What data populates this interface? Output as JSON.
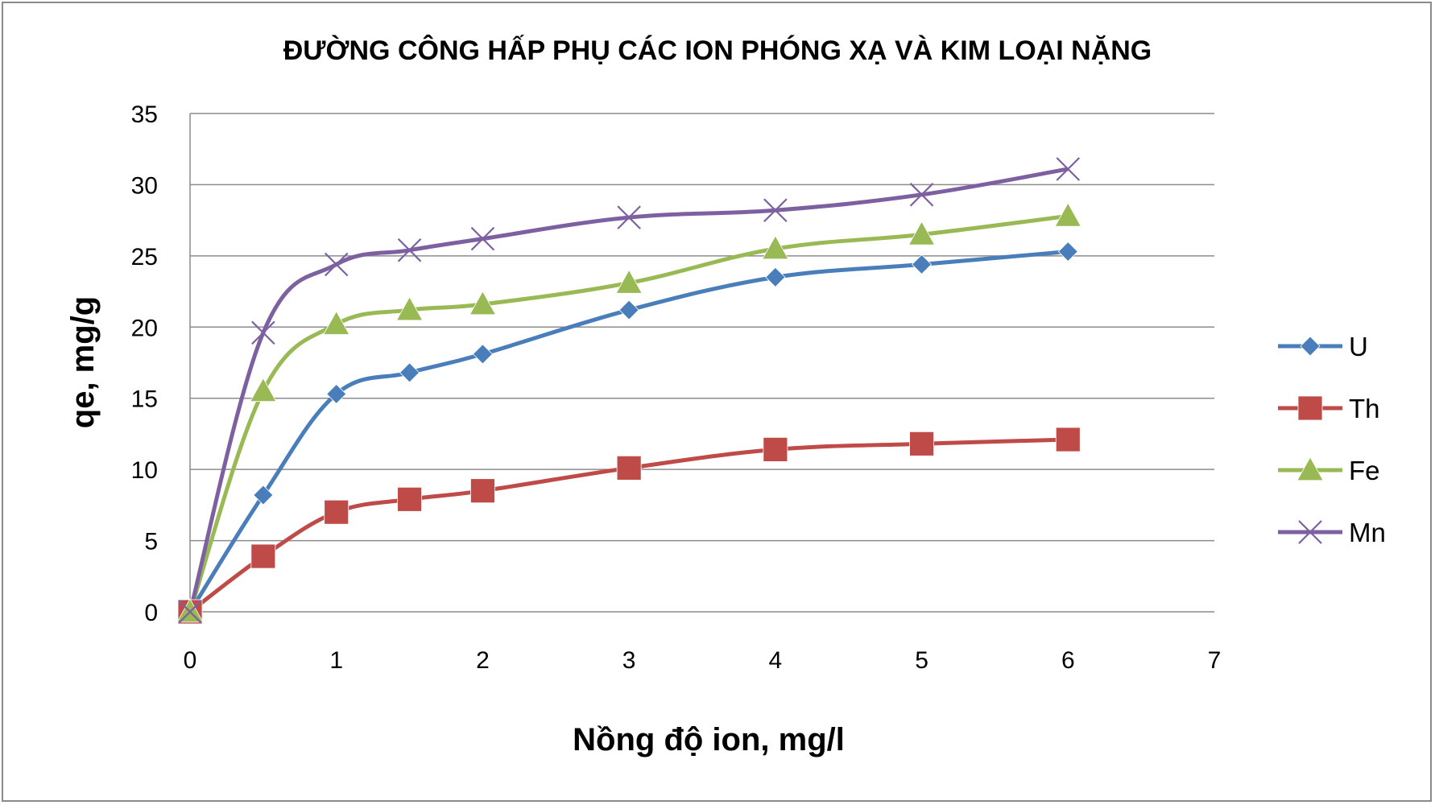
{
  "chart_data": {
    "type": "line",
    "title": "ĐƯỜNG CÔNG HẤP PHỤ CÁC ION PHÓNG XẠ VÀ KIM LOẠI NẶNG",
    "xlabel": "Nồng độ ion, mg/l",
    "ylabel": "qe, mg/g",
    "xlim": [
      0,
      7
    ],
    "ylim": [
      0,
      35
    ],
    "x_ticks": [
      "0",
      "1",
      "2",
      "3",
      "4",
      "5",
      "6",
      "7"
    ],
    "y_ticks": [
      "0",
      "5",
      "10",
      "15",
      "20",
      "25",
      "30",
      "35"
    ],
    "grid": "horizontal",
    "legend_position": "right",
    "x": [
      0,
      0.5,
      1,
      1.5,
      2,
      3,
      4,
      5,
      6
    ],
    "series": [
      {
        "name": "U",
        "color": "#4a7ebb",
        "marker": "diamond",
        "values": [
          0,
          8.2,
          15.3,
          16.8,
          18.1,
          21.2,
          23.5,
          24.4,
          25.3
        ]
      },
      {
        "name": "Th",
        "color": "#be4b48",
        "marker": "square",
        "values": [
          0,
          3.9,
          7.0,
          7.9,
          8.5,
          10.1,
          11.4,
          11.8,
          12.1
        ]
      },
      {
        "name": "Fe",
        "color": "#98b954",
        "marker": "triangle",
        "values": [
          0,
          15.5,
          20.2,
          21.2,
          21.6,
          23.1,
          25.5,
          26.5,
          27.8
        ]
      },
      {
        "name": "Mn",
        "color": "#7d60a0",
        "marker": "x",
        "values": [
          0,
          19.6,
          24.4,
          25.4,
          26.2,
          27.7,
          28.2,
          29.3,
          31.1
        ]
      }
    ]
  }
}
